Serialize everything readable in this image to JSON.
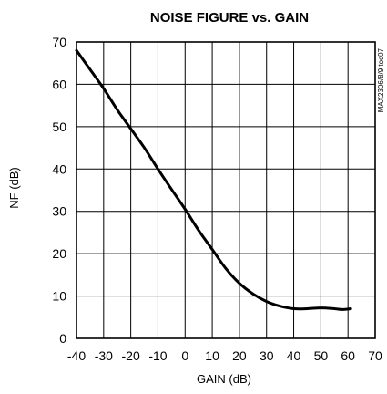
{
  "chart_data": {
    "type": "line",
    "title": "NOISE FIGURE vs. GAIN",
    "xlabel": "GAIN (dB)",
    "ylabel": "NF (dB)",
    "side_note": "MAX2306/8/9 toc07",
    "xlim": [
      -40,
      70
    ],
    "ylim": [
      0,
      70
    ],
    "x_ticks": [
      -40,
      -30,
      -20,
      -10,
      0,
      10,
      20,
      30,
      40,
      50,
      60,
      70
    ],
    "y_ticks": [
      0,
      10,
      20,
      30,
      40,
      50,
      60,
      70
    ],
    "grid": true,
    "series": [
      {
        "x": [
          -40,
          -35,
          -30,
          -25,
          -20,
          -15,
          -10,
          -5,
          0,
          5,
          10,
          15,
          20,
          25,
          30,
          35,
          40,
          45,
          50,
          55,
          58,
          61
        ],
        "y": [
          68,
          63.5,
          59,
          54,
          49.5,
          45,
          40,
          35.2,
          30.5,
          25.5,
          21,
          16.5,
          13,
          10.5,
          8.7,
          7.6,
          7,
          7,
          7.2,
          7.0,
          6.8,
          7.0
        ]
      }
    ]
  }
}
